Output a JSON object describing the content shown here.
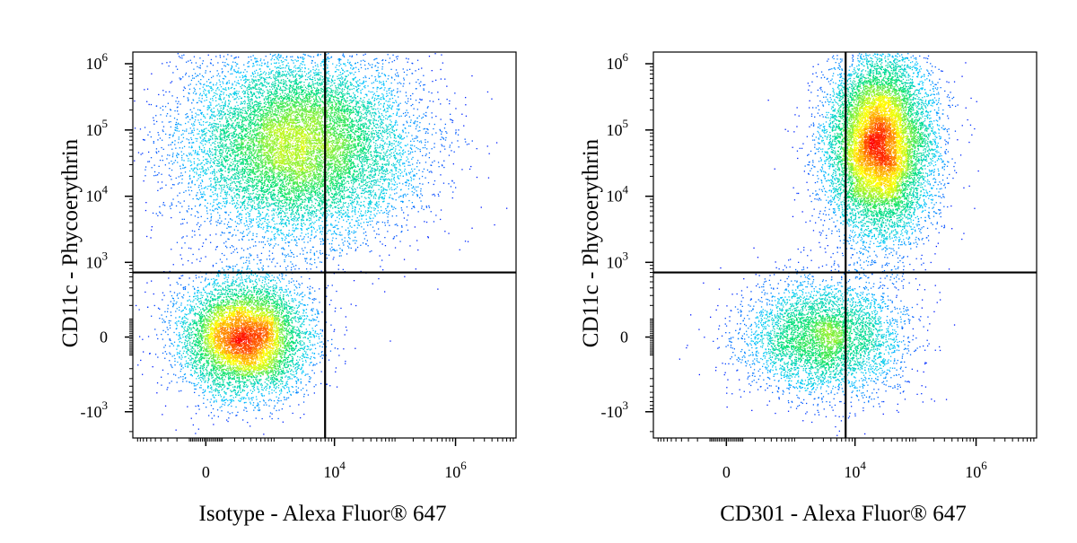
{
  "chart_data": [
    {
      "type": "scatter",
      "title": "",
      "xlabel": "Isotype - Alexa Fluor® 647",
      "ylabel": "CD11c - Phycoerythrin",
      "x_scale": "biexponential",
      "y_scale": "biexponential",
      "x_ticks": [
        {
          "value": 0,
          "base": "0",
          "exp": ""
        },
        {
          "value": 10000,
          "base": "10",
          "exp": "4"
        },
        {
          "value": 1000000,
          "base": "10",
          "exp": "6"
        }
      ],
      "y_ticks": [
        {
          "value": 1000000,
          "base": "10",
          "exp": "6"
        },
        {
          "value": 100000,
          "base": "10",
          "exp": "5"
        },
        {
          "value": 10000,
          "base": "10",
          "exp": "4"
        },
        {
          "value": 1000,
          "base": "10",
          "exp": "3"
        },
        {
          "value": 0,
          "base": "0",
          "exp": ""
        },
        {
          "value": -1000,
          "base": "-10",
          "exp": "3"
        }
      ],
      "gate": {
        "x": 7000,
        "y": 700
      },
      "populations": [
        {
          "name": "",
          "weight": 0.62,
          "x_center": 2500,
          "x_spread": 2.2,
          "y_center": 60000,
          "y_spread": 1.6
        },
        {
          "name": "",
          "weight": 0.38,
          "x_center": 300,
          "x_spread": 1.2,
          "y_center": 0,
          "y_spread": 1.0
        }
      ],
      "n_events": 20000,
      "grid": false,
      "legend": "none"
    },
    {
      "type": "scatter",
      "title": "",
      "xlabel": "CD301 - Alexa Fluor® 647",
      "ylabel": "CD11c - Phycoerythrin",
      "x_scale": "biexponential",
      "y_scale": "biexponential",
      "x_ticks": [
        {
          "value": 0,
          "base": "0",
          "exp": ""
        },
        {
          "value": 10000,
          "base": "10",
          "exp": "4"
        },
        {
          "value": 1000000,
          "base": "10",
          "exp": "6"
        }
      ],
      "y_ticks": [
        {
          "value": 1000000,
          "base": "10",
          "exp": "6"
        },
        {
          "value": 100000,
          "base": "10",
          "exp": "5"
        },
        {
          "value": 10000,
          "base": "10",
          "exp": "4"
        },
        {
          "value": 1000,
          "base": "10",
          "exp": "3"
        },
        {
          "value": 0,
          "base": "0",
          "exp": ""
        },
        {
          "value": -1000,
          "base": "-10",
          "exp": "3"
        }
      ],
      "gate": {
        "x": 7000,
        "y": 700
      },
      "populations": [
        {
          "name": "",
          "weight": 0.7,
          "x_center": 25000,
          "x_spread": 1.0,
          "y_center": 60000,
          "y_spread": 1.6
        },
        {
          "name": "",
          "weight": 0.3,
          "x_center": 3000,
          "x_spread": 1.5,
          "y_center": 0,
          "y_spread": 1.0
        }
      ],
      "n_events": 16000,
      "grid": false,
      "legend": "none"
    }
  ],
  "colors": {
    "density_low": "#0000ff",
    "density_mid_low": "#00c8ff",
    "density_mid": "#00e070",
    "density_mid_high": "#ffff00",
    "density_high": "#ff0000",
    "axis": "#000000",
    "gate": "#000000"
  }
}
